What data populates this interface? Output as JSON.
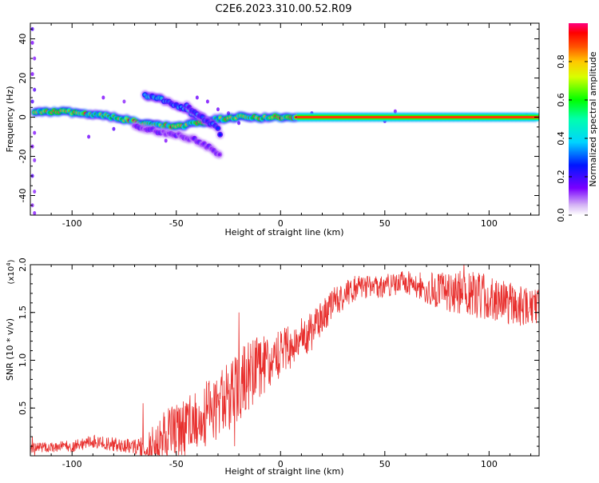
{
  "title": "C2E6.2023.310.00.52.R09",
  "colors": {
    "snr_line": "#e8302e",
    "ridge": "#e32020"
  },
  "chart_data": [
    {
      "type": "heatmap",
      "xlabel": "Height of straight line (km)",
      "ylabel": "Frequency (Hz)",
      "xlim": [
        -120,
        124
      ],
      "ylim": [
        -50,
        48
      ],
      "x_ticks": [
        -100,
        -50,
        0,
        50,
        100
      ],
      "y_ticks": [
        40,
        20,
        0,
        -20,
        -40
      ],
      "colorbar": {
        "label": "Normalized spectral amplitude",
        "range": [
          0,
          1
        ],
        "ticks": [
          "0.0",
          "0.2",
          "0.4",
          "0.6",
          "0.8"
        ],
        "colormap": "rainbow"
      },
      "ridges": [
        {
          "points": [
            [
              -118,
              3
            ],
            [
              -105,
              3
            ],
            [
              -95,
              2
            ],
            [
              -85,
              1
            ],
            [
              -75,
              -1
            ],
            [
              -68,
              -3
            ],
            [
              -60,
              -4
            ],
            [
              -50,
              -5
            ],
            [
              -40,
              -3
            ],
            [
              -30,
              -1
            ],
            [
              -20,
              0
            ],
            [
              -10,
              0
            ],
            [
              0,
              0
            ],
            [
              8,
              0
            ]
          ],
          "amplitude": 0.85
        },
        {
          "points": [
            [
              8,
              0
            ],
            [
              124,
              0
            ]
          ],
          "amplitude": 0.95
        },
        {
          "points": [
            [
              -65,
              11
            ],
            [
              -57,
              9
            ],
            [
              -50,
              6
            ],
            [
              -44,
              3
            ],
            [
              -38,
              0
            ],
            [
              -32,
              -3
            ]
          ],
          "amplitude": 0.45
        },
        {
          "points": [
            [
              -70,
              -4
            ],
            [
              -60,
              -7
            ],
            [
              -50,
              -9
            ],
            [
              -40,
              -12
            ],
            [
              -32,
              -17
            ],
            [
              -28,
              -21
            ]
          ],
          "amplitude": 0.2
        },
        {
          "points": [
            [
              -45,
              6
            ],
            [
              -40,
              2
            ],
            [
              -35,
              -2
            ],
            [
              -30,
              -6
            ],
            [
              -28,
              -12
            ]
          ],
          "amplitude": 0.3
        }
      ],
      "scatter_noise": [
        [
          -119,
          45
        ],
        [
          -119,
          38
        ],
        [
          -118,
          30
        ],
        [
          -119,
          22
        ],
        [
          -118,
          14
        ],
        [
          -119,
          8
        ],
        [
          -118,
          -8
        ],
        [
          -119,
          -15
        ],
        [
          -118,
          -22
        ],
        [
          -119,
          -30
        ],
        [
          -118,
          -38
        ],
        [
          -119,
          -45
        ],
        [
          -118,
          -49
        ],
        [
          -85,
          10
        ],
        [
          -80,
          -6
        ],
        [
          -92,
          -10
        ],
        [
          -75,
          8
        ],
        [
          -30,
          4
        ],
        [
          -25,
          2
        ],
        [
          -35,
          8
        ],
        [
          -40,
          10
        ],
        [
          -55,
          -12
        ],
        [
          -48,
          4
        ],
        [
          -20,
          -3
        ],
        [
          15,
          2
        ],
        [
          50,
          -2
        ],
        [
          55,
          3
        ],
        [
          118,
          1
        ]
      ]
    },
    {
      "type": "line",
      "xlabel": "Height of straight line (km)",
      "ylabel": "SNR (10 * v/v)",
      "scale_label": "(x10",
      "scale_exp": "4",
      "scale_close": ")",
      "xlim": [
        -120,
        124
      ],
      "ylim": [
        0,
        2.0
      ],
      "x_ticks": [
        -100,
        -50,
        0,
        50,
        100
      ],
      "y_ticks": [
        "0.5",
        "1.0",
        "1.5",
        "2.0"
      ],
      "trend": [
        [
          -120,
          0.08
        ],
        [
          -100,
          0.1
        ],
        [
          -90,
          0.15
        ],
        [
          -80,
          0.12
        ],
        [
          -70,
          0.1
        ],
        [
          -65,
          0.05
        ],
        [
          -55,
          0.2
        ],
        [
          -45,
          0.3
        ],
        [
          -35,
          0.45
        ],
        [
          -25,
          0.6
        ],
        [
          -15,
          0.85
        ],
        [
          -5,
          1.0
        ],
        [
          5,
          1.15
        ],
        [
          15,
          1.3
        ],
        [
          25,
          1.6
        ],
        [
          35,
          1.75
        ],
        [
          50,
          1.78
        ],
        [
          60,
          1.82
        ],
        [
          70,
          1.75
        ],
        [
          80,
          1.72
        ],
        [
          90,
          1.7
        ],
        [
          100,
          1.66
        ],
        [
          110,
          1.6
        ],
        [
          120,
          1.55
        ],
        [
          124,
          1.6
        ]
      ],
      "noise_amplitude": [
        [
          -120,
          0.05
        ],
        [
          -70,
          0.08
        ],
        [
          -55,
          0.3
        ],
        [
          -30,
          0.35
        ],
        [
          -20,
          0.4
        ],
        [
          0,
          0.25
        ],
        [
          20,
          0.18
        ],
        [
          40,
          0.12
        ],
        [
          60,
          0.12
        ],
        [
          90,
          0.25
        ],
        [
          124,
          0.2
        ]
      ],
      "spikes": [
        [
          -120,
          0.0
        ],
        [
          -119,
          0.2
        ],
        [
          -118,
          0.0
        ],
        [
          -67,
          0.0
        ],
        [
          -66,
          0.55
        ],
        [
          -65,
          0.05
        ],
        [
          -22,
          0.1
        ],
        [
          -20,
          1.5
        ],
        [
          -18,
          0.5
        ],
        [
          87,
          1.6
        ],
        [
          88,
          2.02
        ],
        [
          89,
          1.7
        ]
      ]
    }
  ]
}
